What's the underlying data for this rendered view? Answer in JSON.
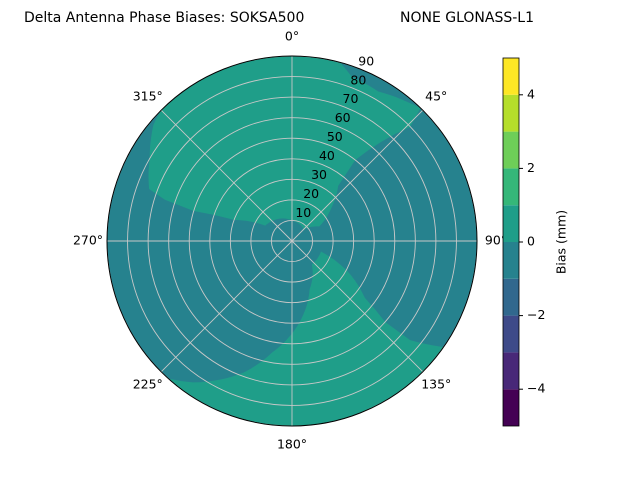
{
  "chart_data": {
    "type": "polar_contour",
    "title": "Delta Antenna Phase Biases: SOKSA500",
    "subtitle": "NONE GLONASS-L1",
    "theta_ticks": [
      {
        "value": 0,
        "label": "0°"
      },
      {
        "value": 45,
        "label": "45°"
      },
      {
        "value": 90,
        "label": "90°"
      },
      {
        "value": 135,
        "label": "135°"
      },
      {
        "value": 180,
        "label": "180°"
      },
      {
        "value": 225,
        "label": "225°"
      },
      {
        "value": 270,
        "label": "270°"
      },
      {
        "value": 315,
        "label": "315°"
      }
    ],
    "rlim": [
      0,
      90
    ],
    "rticks": [
      10,
      20,
      30,
      40,
      50,
      60,
      70,
      80,
      90
    ],
    "grid": true,
    "background_level": -1,
    "regions": [
      {
        "level": 0,
        "points": [
          [
            290,
            74
          ],
          [
            300,
            80
          ],
          [
            310,
            88
          ],
          [
            315,
            90
          ],
          [
            15,
            90
          ],
          [
            20,
            85
          ],
          [
            30,
            84
          ],
          [
            40,
            88
          ],
          [
            44,
            90
          ],
          [
            46,
            80
          ],
          [
            42,
            65
          ],
          [
            38,
            50
          ],
          [
            40,
            35
          ],
          [
            50,
            25
          ],
          [
            62,
            15
          ],
          [
            45,
            8
          ],
          [
            0,
            10
          ],
          [
            300,
            15
          ],
          [
            290,
            30
          ],
          [
            287,
            50
          ],
          [
            288,
            65
          ]
        ]
      },
      {
        "level": 0,
        "points": [
          [
            125,
            90
          ],
          [
            222,
            90
          ],
          [
            215,
            84
          ],
          [
            200,
            68
          ],
          [
            190,
            55
          ],
          [
            175,
            40
          ],
          [
            160,
            25
          ],
          [
            140,
            15
          ],
          [
            110,
            15
          ],
          [
            118,
            30
          ],
          [
            128,
            45
          ],
          [
            131,
            60
          ],
          [
            130,
            75
          ]
        ]
      }
    ],
    "colorbar": {
      "label": "Bias (mm)",
      "levels": [
        -5,
        -4,
        -3,
        -2,
        -1,
        0,
        1,
        2,
        3,
        4,
        5
      ],
      "colors": [
        "#440154",
        "#482878",
        "#3e4a89",
        "#31688e",
        "#26828e",
        "#1f9e89",
        "#35b779",
        "#6ece58",
        "#b5de2b",
        "#fde725"
      ],
      "ticks": [
        {
          "value": -4,
          "label": "−4"
        },
        {
          "value": -2,
          "label": "−2"
        },
        0,
        2,
        4
      ]
    }
  }
}
